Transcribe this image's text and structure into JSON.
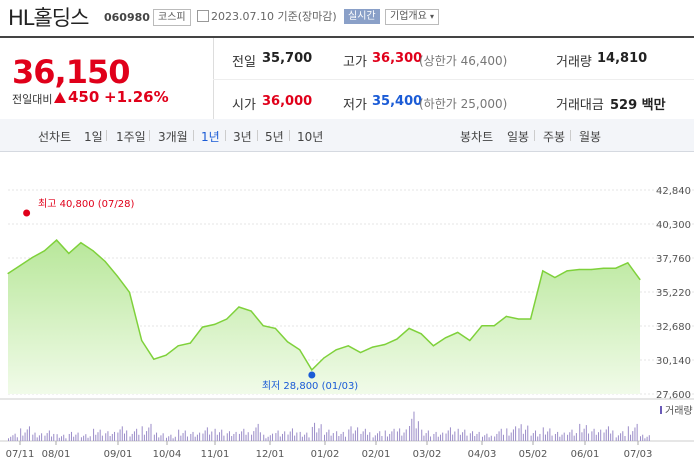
{
  "header": {
    "name": "HL홀딩스",
    "code": "060980",
    "market": "코스피",
    "date_text": "2023.07.10 기준(장마감)",
    "realtime": "실시간",
    "company_info": "기업개요"
  },
  "summary": {
    "price": "36,150",
    "change_label": "전일대비",
    "change": "450",
    "change_pct": "+1.26%",
    "prev_label": "전일",
    "prev": "35,700",
    "high_label": "고가",
    "high": "36,300",
    "upper_limit": "(상한가 46,400)",
    "volume_label": "거래량",
    "volume": "14,810",
    "open_label": "시가",
    "open": "36,000",
    "low_label": "저가",
    "low": "35,400",
    "lower_limit": "(하한가 25,000)",
    "amount_label": "거래대금",
    "amount": "529 백만"
  },
  "periods": {
    "line_label": "선차트",
    "items": [
      "1일",
      "1주일",
      "3개월",
      "1년",
      "3년",
      "5년",
      "10년"
    ],
    "active": "1년",
    "candle_label": "봉차트",
    "candle_items": [
      "일봉",
      "주봉",
      "월봉"
    ]
  },
  "colors": {
    "up": "#e0001a",
    "down": "#1a5bd6",
    "area": "#7fd13b",
    "active": "#1a5bd6"
  },
  "chart_data": {
    "type": "area",
    "y_ticks": [
      "42,840",
      "40,300",
      "37,760",
      "35,220",
      "32,680",
      "30,140",
      "27,600"
    ],
    "ylim": [
      27600,
      42840
    ],
    "x_ticks": [
      "07/11",
      "08/01",
      "09/01",
      "10/04",
      "11/01",
      "12/01",
      "01/02",
      "02/01",
      "03/02",
      "04/03",
      "05/02",
      "06/01",
      "07/03"
    ],
    "max_label": "최고 40,800 (07/28)",
    "min_label": "최저 28,800 (01/03)",
    "volume_label": "거래량",
    "x": [
      "07/11",
      "07/18",
      "07/25",
      "08/01",
      "08/08",
      "08/15",
      "08/22",
      "08/29",
      "09/05",
      "09/12",
      "09/19",
      "09/26",
      "10/04",
      "10/11",
      "10/18",
      "10/25",
      "11/01",
      "11/08",
      "11/15",
      "11/22",
      "11/29",
      "12/06",
      "12/13",
      "12/20",
      "12/27",
      "01/03",
      "01/10",
      "01/17",
      "01/24",
      "01/31",
      "02/07",
      "02/14",
      "02/21",
      "02/28",
      "03/07",
      "03/14",
      "03/21",
      "03/28",
      "04/04",
      "04/11",
      "04/18",
      "04/25",
      "05/02",
      "05/09",
      "05/16",
      "05/23",
      "05/30",
      "06/06",
      "06/13",
      "06/20",
      "06/27",
      "07/04",
      "07/10"
    ],
    "values": [
      36600,
      37200,
      37800,
      38300,
      39100,
      38100,
      38900,
      38300,
      37500,
      36400,
      35200,
      31600,
      30200,
      30500,
      31200,
      31400,
      32600,
      32800,
      33200,
      34100,
      33800,
      32700,
      32500,
      31500,
      30900,
      29400,
      30300,
      30900,
      31200,
      30700,
      31100,
      31300,
      31700,
      32500,
      32100,
      31200,
      31800,
      32200,
      31600,
      32700,
      32700,
      33400,
      33200,
      33200,
      36800,
      36300,
      36800,
      36900,
      36900,
      37000,
      37000,
      37400,
      36150
    ],
    "volumes": [
      3,
      6,
      4,
      5,
      3,
      4,
      3,
      5,
      4,
      6,
      5,
      7,
      4,
      3,
      5,
      4,
      6,
      5,
      4,
      5,
      7,
      3,
      5,
      6,
      4,
      8,
      5,
      4,
      6,
      5,
      4,
      5,
      6,
      14,
      5,
      4,
      6,
      5,
      4,
      3,
      5,
      6,
      8,
      5,
      6,
      4,
      5,
      7,
      5,
      6,
      4,
      7,
      3
    ]
  }
}
